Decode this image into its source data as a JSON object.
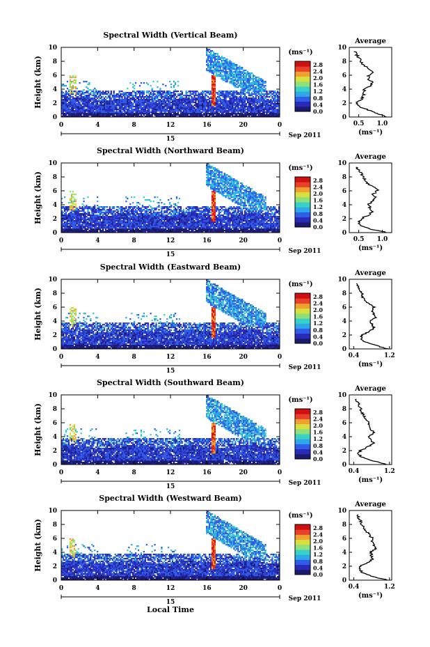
{
  "figure": {
    "date_label": "Sep 2011",
    "day_label": "15",
    "xlabel_bottom": "Local Time",
    "colorbar_unit": "(ms⁻¹)",
    "avg_title": "Average",
    "avg_xunit": "(ms⁻¹)",
    "ylabel": "Height (km)"
  },
  "colorbar": {
    "ticks": [
      "0.0",
      "0.4",
      "0.8",
      "1.2",
      "1.6",
      "2.0",
      "2.4",
      "2.8"
    ],
    "stops": [
      "#1a1a6e",
      "#2a2ab8",
      "#2f5ce8",
      "#2fa8e8",
      "#39d0c8",
      "#8ee07a",
      "#d8e040",
      "#f0a030",
      "#e8402a",
      "#d01010"
    ]
  },
  "chart_data": [
    {
      "type": "heatmap",
      "title": "Spectral Width (Vertical Beam)",
      "xlabel": "",
      "ylabel": "Height (km)",
      "x_ticks": [
        "0",
        "4",
        "8",
        "12",
        "16",
        "20",
        "0"
      ],
      "y_ticks": [
        "0",
        "2",
        "4",
        "6",
        "8",
        "10"
      ],
      "xlim": [
        0,
        24
      ],
      "ylim": [
        0,
        10
      ],
      "avg": {
        "title": "Average",
        "xticks": [
          "0.5",
          "1.0"
        ],
        "xlim": [
          0.3,
          1.2
        ],
        "yticks": [
          "0",
          "2",
          "4",
          "6",
          "8",
          "10"
        ],
        "profile": [
          [
            0,
            1.1
          ],
          [
            0.5,
            0.9
          ],
          [
            1,
            0.7
          ],
          [
            1.5,
            0.5
          ],
          [
            2,
            0.45
          ],
          [
            2.5,
            0.55
          ],
          [
            3,
            0.6
          ],
          [
            3.5,
            0.62
          ],
          [
            4,
            0.62
          ],
          [
            4.5,
            0.75
          ],
          [
            5,
            0.8
          ],
          [
            5.5,
            0.7
          ],
          [
            6,
            0.72
          ],
          [
            6.5,
            0.8
          ],
          [
            7,
            0.7
          ],
          [
            7.5,
            0.6
          ],
          [
            8,
            0.55
          ],
          [
            8.5,
            0.5
          ],
          [
            9,
            0.45
          ],
          [
            9.5,
            0.42
          ]
        ]
      }
    },
    {
      "type": "heatmap",
      "title": "Spectral Width (Northward Beam)",
      "xlabel": "",
      "ylabel": "Height (km)",
      "x_ticks": [
        "0",
        "4",
        "8",
        "12",
        "16",
        "20",
        "0"
      ],
      "y_ticks": [
        "0",
        "2",
        "4",
        "6",
        "8",
        "10"
      ],
      "xlim": [
        0,
        24
      ],
      "ylim": [
        0,
        10
      ],
      "avg": {
        "title": "Average",
        "xticks": [
          "0.5",
          "1.0"
        ],
        "xlim": [
          0.3,
          1.2
        ],
        "yticks": [
          "0",
          "2",
          "4",
          "6",
          "8",
          "10"
        ],
        "profile": [
          [
            0,
            1.1
          ],
          [
            0.5,
            0.75
          ],
          [
            1,
            0.55
          ],
          [
            1.5,
            0.5
          ],
          [
            2,
            0.55
          ],
          [
            2.5,
            0.7
          ],
          [
            3,
            0.8
          ],
          [
            3.5,
            0.75
          ],
          [
            4,
            0.7
          ],
          [
            4.5,
            0.8
          ],
          [
            5,
            0.85
          ],
          [
            5.5,
            0.8
          ],
          [
            6,
            0.9
          ],
          [
            6.5,
            0.85
          ],
          [
            7,
            0.7
          ],
          [
            7.5,
            0.65
          ],
          [
            8,
            0.6
          ],
          [
            8.5,
            0.55
          ],
          [
            9,
            0.5
          ],
          [
            9.5,
            0.45
          ]
        ]
      }
    },
    {
      "type": "heatmap",
      "title": "Spectral Width (Eastward Beam)",
      "xlabel": "",
      "ylabel": "Height (km)",
      "x_ticks": [
        "0",
        "4",
        "8",
        "12",
        "16",
        "20",
        "0"
      ],
      "y_ticks": [
        "0",
        "2",
        "4",
        "6",
        "8",
        "10"
      ],
      "xlim": [
        0,
        24
      ],
      "ylim": [
        0,
        10
      ],
      "avg": {
        "title": "Average",
        "xticks": [
          "0.4",
          "1.2"
        ],
        "xlim": [
          0.3,
          1.25
        ],
        "yticks": [
          "0",
          "2",
          "4",
          "6",
          "8",
          "10"
        ],
        "profile": [
          [
            0,
            1.15
          ],
          [
            0.5,
            0.9
          ],
          [
            1,
            0.65
          ],
          [
            1.5,
            0.55
          ],
          [
            2,
            0.6
          ],
          [
            2.5,
            0.75
          ],
          [
            3,
            0.85
          ],
          [
            3.5,
            0.8
          ],
          [
            4,
            0.78
          ],
          [
            4.5,
            0.9
          ],
          [
            5,
            0.85
          ],
          [
            5.5,
            0.8
          ],
          [
            6,
            0.85
          ],
          [
            6.5,
            0.75
          ],
          [
            7,
            0.65
          ],
          [
            7.5,
            0.6
          ],
          [
            8,
            0.58
          ],
          [
            8.5,
            0.55
          ],
          [
            9,
            0.5
          ],
          [
            9.5,
            0.48
          ]
        ]
      }
    },
    {
      "type": "heatmap",
      "title": "Spectral Width (Southward Beam)",
      "xlabel": "",
      "ylabel": "Height (km)",
      "x_ticks": [
        "0",
        "4",
        "8",
        "12",
        "16",
        "20",
        "0"
      ],
      "y_ticks": [
        "0",
        "2",
        "4",
        "6",
        "8",
        "10"
      ],
      "xlim": [
        0,
        24
      ],
      "ylim": [
        0,
        10
      ],
      "avg": {
        "title": "Average",
        "xticks": [
          "0.4",
          "1.2"
        ],
        "xlim": [
          0.3,
          1.25
        ],
        "yticks": [
          "0",
          "2",
          "4",
          "6",
          "8",
          "10"
        ],
        "profile": [
          [
            0,
            1.15
          ],
          [
            0.5,
            0.85
          ],
          [
            1,
            0.6
          ],
          [
            1.5,
            0.5
          ],
          [
            2,
            0.55
          ],
          [
            2.5,
            0.7
          ],
          [
            3,
            0.85
          ],
          [
            3.5,
            0.8
          ],
          [
            4,
            0.75
          ],
          [
            4.5,
            0.85
          ],
          [
            5,
            0.8
          ],
          [
            5.5,
            0.75
          ],
          [
            6,
            0.72
          ],
          [
            6.5,
            0.68
          ],
          [
            7,
            0.62
          ],
          [
            7.5,
            0.58
          ],
          [
            8,
            0.55
          ],
          [
            8.5,
            0.52
          ],
          [
            9,
            0.48
          ],
          [
            9.5,
            0.45
          ]
        ]
      }
    },
    {
      "type": "heatmap",
      "title": "Spectral Width (Westward Beam)",
      "xlabel": "Local Time",
      "ylabel": "Height (km)",
      "x_ticks": [
        "0",
        "4",
        "8",
        "12",
        "16",
        "20",
        "0"
      ],
      "y_ticks": [
        "0",
        "2",
        "4",
        "6",
        "8",
        "10"
      ],
      "xlim": [
        0,
        24
      ],
      "ylim": [
        0,
        10
      ],
      "avg": {
        "title": "Average",
        "xticks": [
          "0.4",
          "1.2"
        ],
        "xlim": [
          0.3,
          1.25
        ],
        "yticks": [
          "0",
          "2",
          "4",
          "6",
          "8",
          "10"
        ],
        "profile": [
          [
            0,
            1.15
          ],
          [
            0.5,
            0.85
          ],
          [
            1,
            0.62
          ],
          [
            1.5,
            0.52
          ],
          [
            2,
            0.55
          ],
          [
            2.5,
            0.7
          ],
          [
            3,
            0.82
          ],
          [
            3.5,
            0.8
          ],
          [
            4,
            0.78
          ],
          [
            4.5,
            0.88
          ],
          [
            5,
            0.85
          ],
          [
            5.5,
            0.8
          ],
          [
            6,
            0.82
          ],
          [
            6.5,
            0.75
          ],
          [
            7,
            0.68
          ],
          [
            7.5,
            0.62
          ],
          [
            8,
            0.58
          ],
          [
            8.5,
            0.55
          ],
          [
            9,
            0.5
          ],
          [
            9.5,
            0.48
          ]
        ]
      }
    }
  ]
}
